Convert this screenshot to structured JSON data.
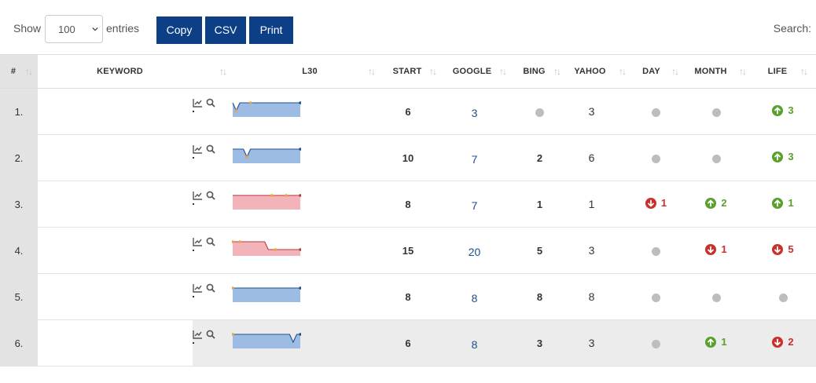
{
  "controls": {
    "show_label": "Show",
    "entries_value": "100",
    "entries_label": "entries",
    "copy_label": "Copy",
    "csv_label": "CSV",
    "print_label": "Print",
    "search_label": "Search:"
  },
  "table": {
    "headers": {
      "num": "#",
      "keyword": "KEYWORD",
      "l30": "L30",
      "start": "START",
      "google": "GOOGLE",
      "bing": "BING",
      "yahoo": "YAHOO",
      "day": "DAY",
      "month": "MONTH",
      "life": "LIFE"
    },
    "rows": [
      {
        "num": "1.",
        "keyword": "",
        "start": "6",
        "google": "3",
        "bing": "",
        "yahoo": "3",
        "day": {
          "dir": "none",
          "value": ""
        },
        "month": {
          "dir": "none",
          "value": ""
        },
        "life": {
          "dir": "up",
          "value": "3"
        },
        "spark": {
          "tone": "blue",
          "values": [
            3,
            4,
            3,
            3,
            3,
            3,
            3,
            3,
            3,
            3,
            3,
            3,
            3,
            3,
            3,
            3,
            3,
            3,
            3,
            3
          ],
          "marks": [
            1,
            5
          ]
        }
      },
      {
        "num": "2.",
        "keyword": "",
        "start": "10",
        "google": "7",
        "bing": "2",
        "yahoo": "6",
        "day": {
          "dir": "none",
          "value": ""
        },
        "month": {
          "dir": "none",
          "value": ""
        },
        "life": {
          "dir": "up",
          "value": "3"
        },
        "spark": {
          "tone": "blue",
          "values": [
            7,
            7,
            7,
            7,
            8,
            7,
            7,
            7,
            7,
            7,
            7,
            7,
            7,
            7,
            7,
            7,
            7,
            7,
            7,
            7
          ],
          "marks": [
            4
          ]
        }
      },
      {
        "num": "3.",
        "keyword": "",
        "start": "8",
        "google": "7",
        "bing": "1",
        "yahoo": "1",
        "day": {
          "dir": "down",
          "value": "1"
        },
        "month": {
          "dir": "up",
          "value": "2"
        },
        "life": {
          "dir": "up",
          "value": "1"
        },
        "spark": {
          "tone": "red",
          "values": [
            7,
            7,
            7,
            7,
            7,
            7,
            7,
            7,
            7,
            7,
            7,
            7,
            7,
            7,
            7,
            7,
            7,
            7,
            7,
            7
          ],
          "marks": [
            11,
            15
          ]
        }
      },
      {
        "num": "4.",
        "keyword": "",
        "start": "15",
        "google": "20",
        "bing": "5",
        "yahoo": "3",
        "day": {
          "dir": "none",
          "value": ""
        },
        "month": {
          "dir": "down",
          "value": "1"
        },
        "life": {
          "dir": "down",
          "value": "5"
        },
        "spark": {
          "tone": "red",
          "values": [
            19,
            19,
            19,
            19,
            19,
            19,
            19,
            19,
            19,
            19,
            20,
            20,
            20,
            20,
            20,
            20,
            20,
            20,
            20,
            20
          ],
          "marks": [
            0,
            2,
            12
          ]
        }
      },
      {
        "num": "5.",
        "keyword": "",
        "start": "8",
        "google": "8",
        "bing": "8",
        "yahoo": "8",
        "day": {
          "dir": "none",
          "value": ""
        },
        "month": {
          "dir": "none",
          "value": ""
        },
        "life": {
          "dir": "none",
          "value": ""
        },
        "spark": {
          "tone": "blue",
          "values": [
            8,
            8,
            8,
            8,
            8,
            8,
            8,
            8,
            8,
            8,
            8,
            8,
            8,
            8,
            8,
            8,
            8,
            8,
            8,
            8
          ],
          "marks": [
            0
          ]
        }
      },
      {
        "num": "6.",
        "keyword": "",
        "start": "6",
        "google": "8",
        "bing": "3",
        "yahoo": "3",
        "day": {
          "dir": "none",
          "value": ""
        },
        "month": {
          "dir": "up",
          "value": "1"
        },
        "life": {
          "dir": "down",
          "value": "2"
        },
        "spark": {
          "tone": "blue",
          "values": [
            8,
            8,
            8,
            8,
            8,
            8,
            8,
            8,
            8,
            8,
            8,
            8,
            8,
            8,
            8,
            8,
            8,
            9,
            8,
            8
          ],
          "marks": [
            0
          ]
        }
      }
    ]
  },
  "colors": {
    "button_bg": "#0d3f87",
    "rank_link": "#1b4e8c",
    "up": "#5aa02c",
    "down": "#c9302c",
    "neutral_dot": "#bdbdbd",
    "spark_blue_fill": "#9cbce4",
    "spark_blue_line": "#1f4f8f",
    "spark_red_fill": "#f2b3ba",
    "spark_red_line": "#b73a3a",
    "spark_marker": "#f0a040"
  },
  "icons": {
    "row_tools": [
      "chart-line-icon",
      "search-icon"
    ],
    "change_up": "arrow-up-circle-icon",
    "change_down": "arrow-down-circle-icon",
    "no_change": "neutral-dot-icon",
    "sort": "sort-arrows-icon",
    "select": "chevron-down-icon"
  }
}
